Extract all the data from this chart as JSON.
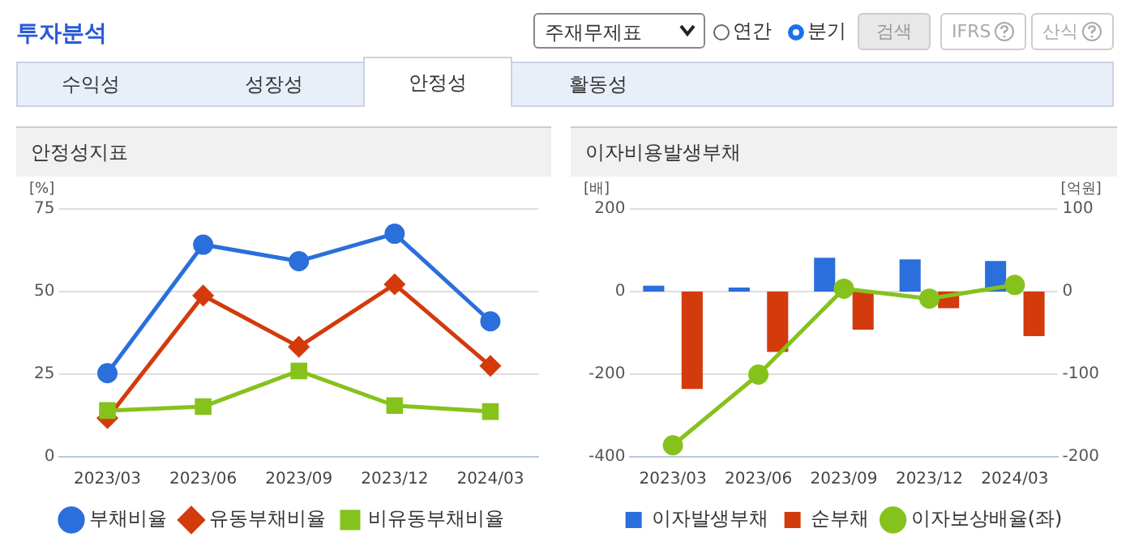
{
  "chart_data": [
    {
      "type": "other",
      "title": "투자분석",
      "annotations": [
        "주재무제표",
        "연간",
        "분기",
        "검색",
        "IFRS",
        "산식",
        "수익성",
        "성장성",
        "안정성",
        "활동성"
      ]
    },
    {
      "type": "line",
      "title": "안정성지표",
      "ylabel": "[%]",
      "categories": [
        "2023/03",
        "2023/06",
        "2023/09",
        "2023/12",
        "2024/03"
      ],
      "ylim": [
        0,
        75
      ],
      "yticks": [
        0,
        25,
        50,
        75
      ],
      "grid": "y",
      "legend": "bottom",
      "series": [
        {
          "name": "부채비율",
          "color": "#2a6fdb",
          "marker": "circle",
          "values": [
            25.3,
            64.2,
            59.2,
            67.5,
            41
          ]
        },
        {
          "name": "유동부채비율",
          "color": "#d33a0c",
          "marker": "diamond",
          "values": [
            11.7,
            48.8,
            33.3,
            52.2,
            27.5
          ]
        },
        {
          "name": "비유동부채비율",
          "color": "#86c21c",
          "marker": "square",
          "values": [
            14,
            15.2,
            26,
            15.5,
            13.7
          ]
        }
      ]
    },
    {
      "type": "bar",
      "title": "이자비용발생부채",
      "ylabel": "[배]",
      "y2label": "[억원]",
      "categories": [
        "2023/03",
        "2023/06",
        "2023/09",
        "2023/12",
        "2024/03"
      ],
      "ylim": [
        -400,
        200
      ],
      "yticks": [
        -400,
        -200,
        0,
        200
      ],
      "y2lim": [
        -200,
        100
      ],
      "y2ticks": [
        -200,
        -100,
        0,
        100
      ],
      "grid": "y",
      "legend": "bottom",
      "series": [
        {
          "name": "이자발생부채",
          "color": "#2a6fdb",
          "axis": "y2",
          "values": [
            7,
            5,
            41,
            39,
            37
          ]
        },
        {
          "name": "순부채",
          "color": "#d33a0c",
          "axis": "y2",
          "values": [
            -118,
            -73,
            -46,
            -20,
            -54
          ]
        },
        {
          "name": "이자보상배율(좌)",
          "type": "line",
          "color": "#86c21c",
          "marker": "circle",
          "axis": "y",
          "values": [
            -372,
            -201,
            7,
            -17,
            16
          ]
        }
      ]
    }
  ]
}
